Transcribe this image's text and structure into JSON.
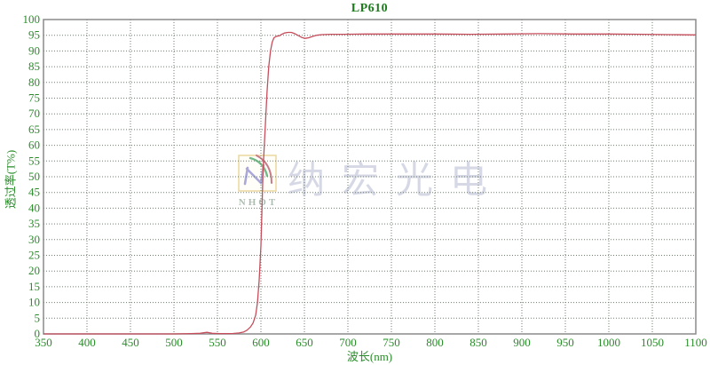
{
  "watermark": {
    "brand": "纳宏光电",
    "logo": "NHOT"
  },
  "chart_data": {
    "type": "line",
    "title": "LP610",
    "xlabel": "波长(nm)",
    "ylabel": "透过率(T%)",
    "xlim": [
      350,
      1100
    ],
    "ylim": [
      0,
      100
    ],
    "grid": true,
    "legend": "none",
    "x_ticks": [
      350,
      400,
      450,
      500,
      550,
      600,
      650,
      700,
      750,
      800,
      850,
      900,
      950,
      1000,
      1050,
      1100
    ],
    "y_ticks": [
      0,
      5,
      10,
      15,
      20,
      25,
      30,
      35,
      40,
      45,
      50,
      55,
      60,
      65,
      70,
      75,
      80,
      85,
      90,
      95,
      100
    ],
    "colors": {
      "curve": "#c64e5c",
      "grid": "#6e7e6e",
      "frame": "#8a8a8a",
      "text": "#2a8b2a",
      "title": "#1d7a1d",
      "watermark_text": "#c7cbdc"
    },
    "series": [
      {
        "name": "LP610 transmission",
        "points": [
          [
            350,
            0
          ],
          [
            380,
            0
          ],
          [
            400,
            0
          ],
          [
            430,
            0
          ],
          [
            450,
            0
          ],
          [
            480,
            0
          ],
          [
            500,
            0
          ],
          [
            520,
            0.1
          ],
          [
            530,
            0.2
          ],
          [
            538,
            0.5
          ],
          [
            544,
            0.2
          ],
          [
            552,
            0.1
          ],
          [
            560,
            0.1
          ],
          [
            568,
            0.15
          ],
          [
            575,
            0.3
          ],
          [
            580,
            0.6
          ],
          [
            584,
            1.2
          ],
          [
            588,
            2.2
          ],
          [
            591,
            3.5
          ],
          [
            594,
            6
          ],
          [
            596,
            10
          ],
          [
            598,
            17
          ],
          [
            600,
            28
          ],
          [
            601,
            38
          ],
          [
            602,
            48
          ],
          [
            603,
            55
          ],
          [
            605,
            66
          ],
          [
            607,
            77
          ],
          [
            609,
            85
          ],
          [
            611,
            90
          ],
          [
            613,
            92.8
          ],
          [
            615,
            94.2
          ],
          [
            618,
            94.7
          ],
          [
            621,
            94.8
          ],
          [
            624,
            95.3
          ],
          [
            627,
            95.7
          ],
          [
            631,
            95.9
          ],
          [
            635,
            95.9
          ],
          [
            639,
            95.5
          ],
          [
            643,
            94.9
          ],
          [
            647,
            94.3
          ],
          [
            651,
            94.0
          ],
          [
            655,
            94.2
          ],
          [
            659,
            94.6
          ],
          [
            664,
            95.0
          ],
          [
            670,
            95.2
          ],
          [
            680,
            95.3
          ],
          [
            695,
            95.3
          ],
          [
            720,
            95.4
          ],
          [
            760,
            95.4
          ],
          [
            800,
            95.4
          ],
          [
            840,
            95.3
          ],
          [
            880,
            95.4
          ],
          [
            920,
            95.5
          ],
          [
            960,
            95.4
          ],
          [
            1000,
            95.4
          ],
          [
            1040,
            95.3
          ],
          [
            1070,
            95.2
          ],
          [
            1100,
            95.1
          ]
        ]
      }
    ]
  }
}
